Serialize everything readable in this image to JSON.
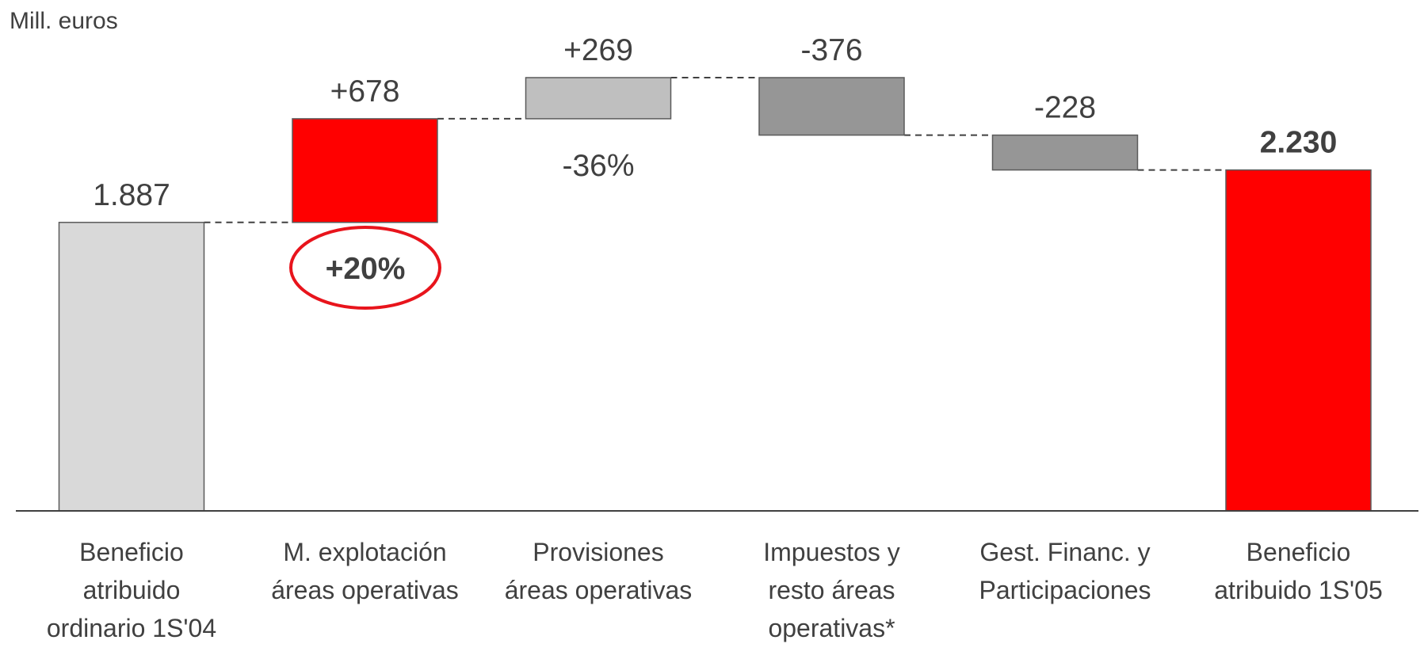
{
  "chart_data": {
    "type": "waterfall",
    "y_label": "Mill. euros",
    "categories": [
      [
        "Beneficio",
        "atribuido",
        "ordinario 1S'04"
      ],
      [
        "M. explotación",
        "áreas operativas"
      ],
      [
        "Provisiones",
        "áreas operativas"
      ],
      [
        "Impuestos y",
        "resto áreas",
        "operativas*"
      ],
      [
        "Gest. Financ. y",
        "Participaciones"
      ],
      [
        "Beneficio",
        "atribuido 1S'05"
      ]
    ],
    "measure": [
      "absolute",
      "relative",
      "relative",
      "relative",
      "relative",
      "total"
    ],
    "values": [
      1887,
      678,
      269,
      -376,
      -228,
      2230
    ],
    "value_labels": [
      "1.887",
      "+678",
      "+269",
      "-376",
      "-228",
      "2.230"
    ],
    "colors": [
      "#d9d9d9",
      "#ff0000",
      "#bfbfbf",
      "#969696",
      "#969696",
      "#ff0000"
    ],
    "annotations": [
      "+20%",
      "-36%"
    ]
  }
}
